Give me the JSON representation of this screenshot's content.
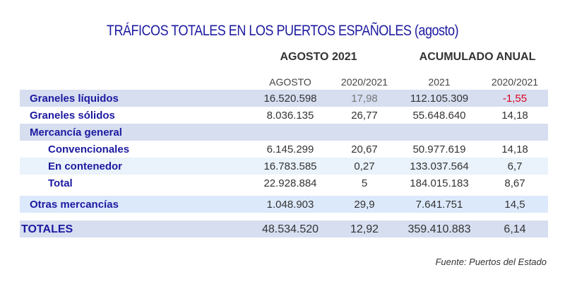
{
  "title": "TRÁFICOS TOTALES EN LOS PUERTOS ESPAÑOLES (agosto)",
  "source": "Fuente: Puertos del Estado",
  "colors": {
    "title": "#1d1aa0",
    "negative": "#e0001b",
    "band_dark": "#d6def0",
    "band_light": "#eaf2fb",
    "band_blue": "#dce9fb"
  },
  "chart_data": {
    "type": "table",
    "column_groups": [
      "AGOSTO 2021",
      "ACUMULADO ANUAL"
    ],
    "columns": [
      "AGOSTO",
      "2020/2021",
      "2021",
      "2020/2021"
    ],
    "rows": [
      {
        "label": "Graneles líquidos",
        "values": [
          "16.520.598",
          "17,98",
          "112.105.309",
          "-1,55"
        ]
      },
      {
        "label": "Graneles sólidos",
        "values": [
          "8.036.135",
          "26,77",
          "55.648.640",
          "14,18"
        ]
      },
      {
        "label": "Mercancía general",
        "values": [
          "",
          "",
          "",
          ""
        ]
      },
      {
        "label": "Convencionales",
        "values": [
          "6.145.299",
          "20,67",
          "50.977.619",
          "14,18"
        ]
      },
      {
        "label": "En contenedor",
        "values": [
          "16.783.585",
          "0,27",
          "133.037.564",
          "6,7"
        ]
      },
      {
        "label": "Total",
        "values": [
          "22.928.884",
          "5",
          "184.015.183",
          "8,67"
        ]
      },
      {
        "label": "Otras mercancías",
        "values": [
          "1.048.903",
          "29,9",
          "7.641.751",
          "14,5"
        ]
      },
      {
        "label": "TOTALES",
        "values": [
          "48.534.520",
          "12,92",
          "359.410.883",
          "6,14"
        ]
      }
    ]
  }
}
